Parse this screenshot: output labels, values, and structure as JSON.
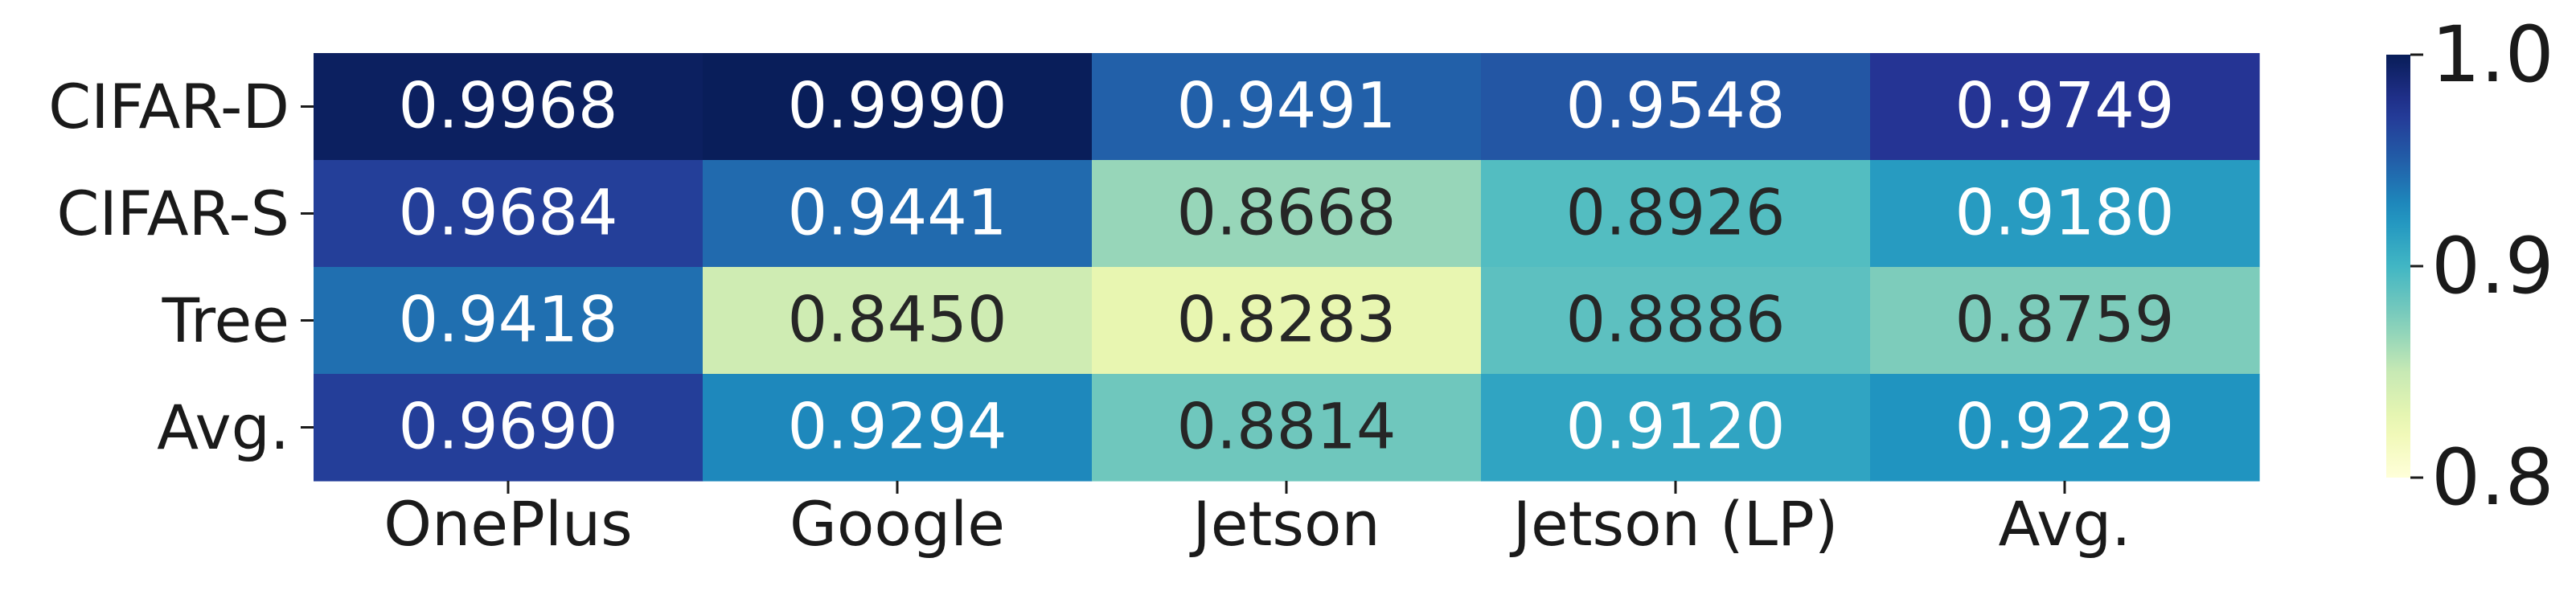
{
  "chart_data": {
    "type": "heatmap",
    "title": "",
    "xlabel": "",
    "ylabel": "",
    "x_categories": [
      "OnePlus",
      "Google",
      "Jetson",
      "Jetson (LP)",
      "Avg."
    ],
    "y_categories": [
      "CIFAR-D",
      "CIFAR-S",
      "Tree",
      "Avg."
    ],
    "values": [
      [
        0.9968,
        0.999,
        0.9491,
        0.9548,
        0.9749
      ],
      [
        0.9684,
        0.9441,
        0.8668,
        0.8926,
        0.918
      ],
      [
        0.9418,
        0.845,
        0.8283,
        0.8886,
        0.8759
      ],
      [
        0.969,
        0.9294,
        0.8814,
        0.912,
        0.9229
      ]
    ],
    "cell_labels": [
      [
        "0.9968",
        "0.9990",
        "0.9491",
        "0.9548",
        "0.9749"
      ],
      [
        "0.9684",
        "0.9441",
        "0.8668",
        "0.8926",
        "0.9180"
      ],
      [
        "0.9418",
        "0.8450",
        "0.8283",
        "0.8886",
        "0.8759"
      ],
      [
        "0.9690",
        "0.9294",
        "0.8814",
        "0.9120",
        "0.9229"
      ]
    ],
    "colormap": "YlGnBu",
    "colorbar": {
      "range": [
        0.8,
        1.0
      ],
      "ticks": [
        0.8,
        0.9,
        1.0
      ],
      "tick_labels": [
        "0.8",
        "0.9",
        "1.0"
      ]
    },
    "text_colors": {
      "dark": "#262626",
      "light": "#ffffff"
    }
  }
}
